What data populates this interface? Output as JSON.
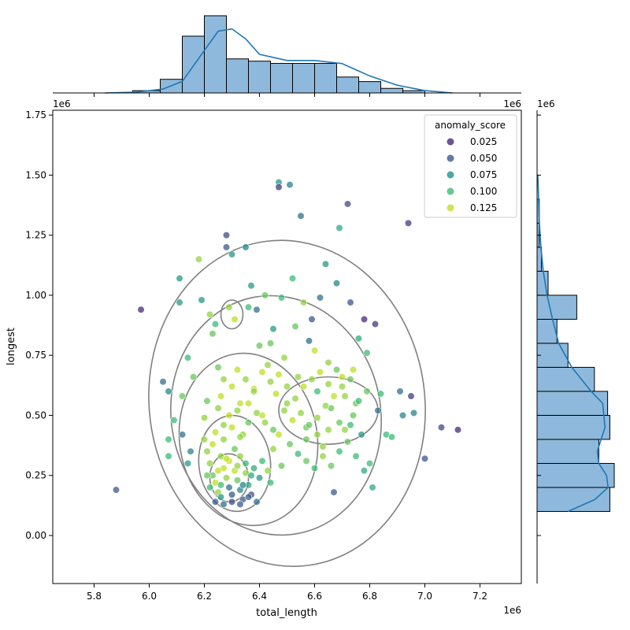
{
  "chart_data": {
    "type": "scatter",
    "xlabel": "total_length",
    "ylabel": "longest",
    "x_scale_label": "1e6",
    "y_scale_label": "1e6",
    "top_margin_scale_label": "1e6",
    "right_margin_scale_label": "1e6",
    "xlim": [
      5.65,
      7.35
    ],
    "ylim": [
      -0.2,
      1.77
    ],
    "x_ticks": [
      "5.8",
      "6.0",
      "6.2",
      "6.4",
      "6.6",
      "6.8",
      "7.0",
      "7.2"
    ],
    "y_ticks": [
      "0.00",
      "0.25",
      "0.50",
      "0.75",
      "1.00",
      "1.25",
      "1.50",
      "1.75"
    ],
    "legend": {
      "title": "anomaly_score",
      "placement": "upper right",
      "entries": [
        {
          "label": "0.025",
          "color": "#482878"
        },
        {
          "label": "0.050",
          "color": "#3b5a8c"
        },
        {
          "label": "0.075",
          "color": "#21918c"
        },
        {
          "label": "0.100",
          "color": "#3cbb75"
        },
        {
          "label": "0.125",
          "color": "#bddf26"
        }
      ]
    },
    "marginal_x_hist": {
      "bin_edges": [
        5.84,
        5.94,
        6.04,
        6.12,
        6.2,
        6.28,
        6.36,
        6.44,
        6.52,
        6.6,
        6.68,
        6.76,
        6.84,
        6.92,
        7.0,
        7.1
      ],
      "counts": [
        0,
        1,
        6,
        25,
        34,
        15,
        14,
        13,
        13,
        13,
        7,
        5,
        2,
        1,
        0
      ]
    },
    "marginal_y_hist": {
      "bin_edges": [
        0.1,
        0.2,
        0.3,
        0.4,
        0.5,
        0.6,
        0.7,
        0.8,
        0.9,
        1.0,
        1.1,
        1.2,
        1.3,
        1.4,
        1.5
      ],
      "counts": [
        33,
        35,
        28,
        33,
        32,
        26,
        14,
        9,
        18,
        5,
        2,
        1,
        1,
        0
      ]
    },
    "outer_contour_level": "lowest density",
    "points": [
      [
        5.88,
        0.19,
        0.05
      ],
      [
        5.97,
        0.94,
        0.02
      ],
      [
        6.05,
        0.64,
        0.06
      ],
      [
        6.07,
        0.6,
        0.07
      ],
      [
        6.07,
        0.4,
        0.1
      ],
      [
        6.07,
        0.33,
        0.1
      ],
      [
        6.09,
        0.48,
        0.1
      ],
      [
        6.11,
        0.97,
        0.08
      ],
      [
        6.11,
        1.07,
        0.08
      ],
      [
        6.12,
        0.58,
        0.11
      ],
      [
        6.12,
        0.42,
        0.06
      ],
      [
        6.14,
        0.3,
        0.08
      ],
      [
        6.14,
        0.74,
        0.1
      ],
      [
        6.15,
        0.35,
        0.07
      ],
      [
        6.16,
        0.66,
        0.11
      ],
      [
        6.18,
        1.15,
        0.12
      ],
      [
        6.19,
        0.98,
        0.08
      ],
      [
        6.2,
        0.49,
        0.12
      ],
      [
        6.21,
        0.56,
        0.11
      ],
      [
        6.22,
        0.92,
        0.12
      ],
      [
        6.23,
        0.84,
        0.11
      ],
      [
        6.24,
        0.88,
        0.1
      ],
      [
        6.25,
        0.7,
        0.11
      ],
      [
        6.26,
        0.58,
        0.13
      ],
      [
        6.27,
        0.46,
        0.12
      ],
      [
        6.28,
        1.25,
        0.04
      ],
      [
        6.28,
        1.2,
        0.05
      ],
      [
        6.29,
        0.95,
        0.12
      ],
      [
        6.3,
        1.17,
        0.08
      ],
      [
        6.31,
        0.9,
        0.13
      ],
      [
        6.32,
        0.69,
        0.13
      ],
      [
        6.33,
        0.55,
        0.13
      ],
      [
        6.34,
        0.42,
        0.12
      ],
      [
        6.35,
        1.2,
        0.07
      ],
      [
        6.36,
        0.95,
        0.1
      ],
      [
        6.37,
        1.04,
        0.08
      ],
      [
        6.38,
        0.61,
        0.13
      ],
      [
        6.39,
        0.94,
        0.06
      ],
      [
        6.4,
        0.79,
        0.11
      ],
      [
        6.41,
        0.5,
        0.13
      ],
      [
        6.42,
        1.0,
        0.11
      ],
      [
        6.43,
        0.71,
        0.12
      ],
      [
        6.44,
        0.8,
        0.11
      ],
      [
        6.45,
        0.86,
        0.08
      ],
      [
        6.46,
        0.59,
        0.13
      ],
      [
        6.47,
        1.47,
        0.08
      ],
      [
        6.47,
        1.45,
        0.03
      ],
      [
        6.48,
        0.99,
        0.1
      ],
      [
        6.49,
        0.74,
        0.12
      ],
      [
        6.5,
        0.55,
        0.12
      ],
      [
        6.51,
        1.46,
        0.07
      ],
      [
        6.52,
        1.07,
        0.1
      ],
      [
        6.53,
        0.87,
        0.11
      ],
      [
        6.54,
        0.66,
        0.12
      ],
      [
        6.55,
        1.33,
        0.06
      ],
      [
        6.56,
        0.97,
        0.12
      ],
      [
        6.57,
        0.45,
        0.11
      ],
      [
        6.58,
        0.81,
        0.06
      ],
      [
        6.59,
        0.9,
        0.05
      ],
      [
        6.6,
        0.77,
        0.13
      ],
      [
        6.61,
        0.6,
        0.1
      ],
      [
        6.62,
        0.99,
        0.06
      ],
      [
        6.63,
        0.37,
        0.12
      ],
      [
        6.64,
        1.13,
        0.08
      ],
      [
        6.65,
        0.72,
        0.12
      ],
      [
        6.66,
        0.53,
        0.11
      ],
      [
        6.67,
        0.18,
        0.05
      ],
      [
        6.68,
        1.05,
        0.07
      ],
      [
        6.69,
        1.28,
        0.09
      ],
      [
        6.7,
        0.66,
        0.13
      ],
      [
        6.71,
        0.44,
        0.12
      ],
      [
        6.72,
        1.38,
        0.04
      ],
      [
        6.73,
        0.97,
        0.05
      ],
      [
        6.74,
        0.69,
        0.13
      ],
      [
        6.75,
        0.55,
        0.11
      ],
      [
        6.76,
        0.82,
        0.09
      ],
      [
        6.77,
        0.42,
        0.08
      ],
      [
        6.78,
        0.9,
        0.02
      ],
      [
        6.79,
        0.76,
        0.1
      ],
      [
        6.8,
        0.3,
        0.1
      ],
      [
        6.81,
        0.2,
        0.09
      ],
      [
        6.82,
        0.88,
        0.03
      ],
      [
        6.83,
        0.52,
        0.06
      ],
      [
        6.84,
        0.59,
        0.1
      ],
      [
        6.86,
        0.42,
        0.1
      ],
      [
        6.88,
        0.41,
        0.1
      ],
      [
        6.91,
        0.6,
        0.06
      ],
      [
        6.92,
        0.5,
        0.07
      ],
      [
        6.94,
        1.3,
        0.03
      ],
      [
        6.95,
        0.58,
        0.03
      ],
      [
        6.96,
        0.51,
        0.07
      ],
      [
        7.0,
        0.32,
        0.05
      ],
      [
        7.06,
        0.45,
        0.04
      ],
      [
        7.12,
        0.44,
        0.02
      ],
      [
        6.22,
        0.3,
        0.12
      ],
      [
        6.23,
        0.25,
        0.11
      ],
      [
        6.24,
        0.22,
        0.13
      ],
      [
        6.25,
        0.18,
        0.12
      ],
      [
        6.26,
        0.16,
        0.08
      ],
      [
        6.27,
        0.28,
        0.13
      ],
      [
        6.28,
        0.24,
        0.12
      ],
      [
        6.29,
        0.2,
        0.06
      ],
      [
        6.3,
        0.17,
        0.05
      ],
      [
        6.31,
        0.27,
        0.13
      ],
      [
        6.32,
        0.23,
        0.11
      ],
      [
        6.33,
        0.19,
        0.07
      ],
      [
        6.34,
        0.15,
        0.05
      ],
      [
        6.35,
        0.26,
        0.12
      ],
      [
        6.36,
        0.21,
        0.09
      ],
      [
        6.37,
        0.17,
        0.04
      ],
      [
        6.21,
        0.35,
        0.12
      ],
      [
        6.23,
        0.38,
        0.13
      ],
      [
        6.26,
        0.33,
        0.12
      ],
      [
        6.29,
        0.31,
        0.13
      ],
      [
        6.31,
        0.36,
        0.11
      ],
      [
        6.33,
        0.33,
        0.12
      ],
      [
        6.35,
        0.3,
        0.1
      ],
      [
        6.38,
        0.28,
        0.09
      ],
      [
        6.4,
        0.24,
        0.08
      ],
      [
        6.24,
        0.14,
        0.05
      ],
      [
        6.27,
        0.13,
        0.06
      ],
      [
        6.3,
        0.14,
        0.04
      ],
      [
        6.33,
        0.13,
        0.05
      ],
      [
        6.36,
        0.16,
        0.05
      ],
      [
        6.39,
        0.14,
        0.06
      ],
      [
        6.22,
        0.2,
        0.1
      ],
      [
        6.25,
        0.27,
        0.13
      ],
      [
        6.28,
        0.32,
        0.13
      ],
      [
        6.32,
        0.29,
        0.12
      ],
      [
        6.34,
        0.21,
        0.07
      ],
      [
        6.37,
        0.25,
        0.09
      ],
      [
        6.2,
        0.4,
        0.12
      ],
      [
        6.24,
        0.43,
        0.13
      ],
      [
        6.27,
        0.4,
        0.12
      ],
      [
        6.3,
        0.45,
        0.13
      ],
      [
        6.33,
        0.41,
        0.12
      ],
      [
        6.36,
        0.47,
        0.11
      ],
      [
        6.21,
        0.25,
        0.11
      ],
      [
        6.26,
        0.21,
        0.1
      ],
      [
        6.41,
        0.31,
        0.1
      ],
      [
        6.43,
        0.27,
        0.12
      ],
      [
        6.45,
        0.36,
        0.12
      ],
      [
        6.47,
        0.42,
        0.13
      ],
      [
        6.44,
        0.22,
        0.1
      ],
      [
        6.48,
        0.29,
        0.11
      ],
      [
        6.49,
        0.52,
        0.12
      ],
      [
        6.52,
        0.48,
        0.13
      ],
      [
        6.55,
        0.51,
        0.12
      ],
      [
        6.58,
        0.46,
        0.11
      ],
      [
        6.61,
        0.49,
        0.12
      ],
      [
        6.64,
        0.54,
        0.12
      ],
      [
        6.67,
        0.58,
        0.13
      ],
      [
        6.7,
        0.62,
        0.12
      ],
      [
        6.73,
        0.65,
        0.11
      ],
      [
        6.76,
        0.56,
        0.1
      ],
      [
        6.79,
        0.6,
        0.11
      ],
      [
        6.53,
        0.57,
        0.12
      ],
      [
        6.56,
        0.62,
        0.13
      ],
      [
        6.59,
        0.65,
        0.12
      ],
      [
        6.62,
        0.68,
        0.13
      ],
      [
        6.65,
        0.63,
        0.12
      ],
      [
        6.68,
        0.69,
        0.11
      ],
      [
        6.71,
        0.58,
        0.12
      ],
      [
        6.74,
        0.5,
        0.11
      ],
      [
        6.5,
        0.62,
        0.12
      ],
      [
        6.47,
        0.67,
        0.13
      ],
      [
        6.44,
        0.64,
        0.12
      ],
      [
        6.41,
        0.68,
        0.13
      ],
      [
        6.38,
        0.6,
        0.12
      ],
      [
        6.35,
        0.65,
        0.12
      ],
      [
        6.3,
        0.62,
        0.13
      ],
      [
        6.27,
        0.65,
        0.12
      ],
      [
        6.25,
        0.53,
        0.12
      ],
      [
        6.29,
        0.5,
        0.13
      ],
      [
        6.32,
        0.52,
        0.12
      ],
      [
        6.36,
        0.55,
        0.13
      ],
      [
        6.39,
        0.51,
        0.12
      ],
      [
        6.42,
        0.47,
        0.12
      ],
      [
        6.45,
        0.44,
        0.11
      ],
      [
        6.51,
        0.38,
        0.11
      ],
      [
        6.54,
        0.34,
        0.1
      ],
      [
        6.57,
        0.31,
        0.11
      ],
      [
        6.6,
        0.28,
        0.1
      ],
      [
        6.63,
        0.33,
        0.12
      ],
      [
        6.66,
        0.29,
        0.11
      ],
      [
        6.69,
        0.35,
        0.1
      ],
      [
        6.72,
        0.39,
        0.11
      ],
      [
        6.75,
        0.33,
        0.1
      ],
      [
        6.78,
        0.27,
        0.09
      ],
      [
        6.57,
        0.4,
        0.11
      ],
      [
        6.61,
        0.42,
        0.12
      ],
      [
        6.65,
        0.44,
        0.12
      ],
      [
        6.69,
        0.47,
        0.11
      ],
      [
        6.73,
        0.46,
        0.1
      ]
    ]
  }
}
